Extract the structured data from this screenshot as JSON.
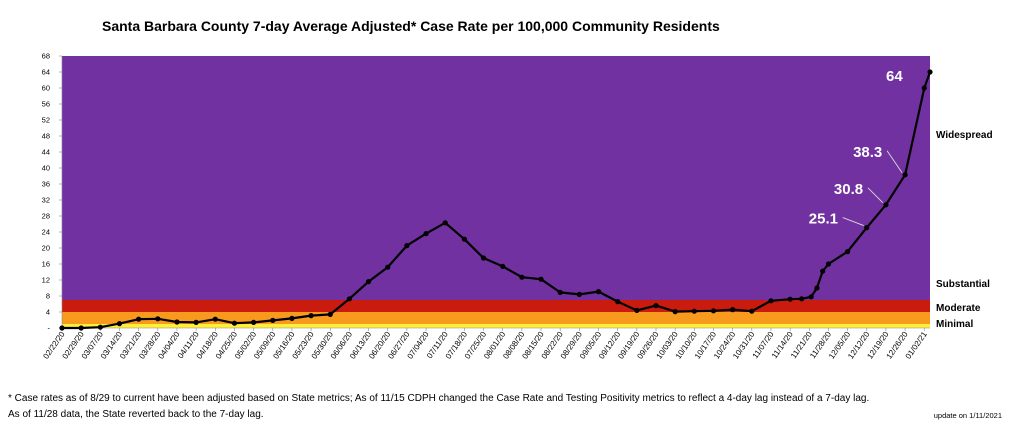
{
  "chart_data": {
    "type": "line",
    "title": "Santa Barbara County 7-day Average Adjusted* Case Rate per 100,000 Community Residents",
    "xlabel": "",
    "ylabel": "",
    "ylim": [
      0,
      68
    ],
    "yticks": [
      0,
      4,
      8,
      12,
      16,
      20,
      24,
      28,
      32,
      36,
      40,
      44,
      48,
      52,
      56,
      60,
      64,
      68
    ],
    "ytick_labels": [
      "-",
      "4",
      "8",
      "12",
      "16",
      "20",
      "24",
      "28",
      "32",
      "36",
      "40",
      "44",
      "48",
      "52",
      "56",
      "60",
      "64",
      "68"
    ],
    "x_tick_labels": [
      "02/22/20",
      "02/29/20",
      "03/07/20",
      "03/14/20",
      "03/21/20",
      "03/28/20",
      "04/04/20",
      "04/11/20",
      "04/18/20",
      "04/25/20",
      "05/02/20",
      "05/09/20",
      "05/16/20",
      "05/23/20",
      "05/30/20",
      "06/06/20",
      "06/13/20",
      "06/20/20",
      "06/27/20",
      "07/04/20",
      "07/11/20",
      "07/18/20",
      "07/25/20",
      "08/01/20",
      "08/08/20",
      "08/15/20",
      "08/22/20",
      "08/29/20",
      "09/05/20",
      "09/12/20",
      "09/19/20",
      "09/26/20",
      "10/03/20",
      "10/10/20",
      "10/17/20",
      "10/24/20",
      "10/31/20",
      "11/07/20",
      "11/14/20",
      "11/21/20",
      "11/28/20",
      "12/05/20",
      "12/12/20",
      "12/19/20",
      "12/26/20",
      "01/02/21"
    ],
    "series": [
      {
        "name": "7-day average adjusted case rate",
        "x": [
          0,
          1,
          2,
          3,
          4,
          5,
          6,
          7,
          8,
          9,
          10,
          11,
          12,
          13,
          14,
          15,
          16,
          17,
          18,
          19,
          20,
          21,
          22,
          23,
          24,
          25,
          26,
          27,
          28,
          29,
          30,
          31,
          32,
          33,
          34,
          35,
          36,
          37,
          38,
          38.6,
          39.1,
          39.4,
          39.7,
          40,
          41,
          42,
          43,
          44,
          45,
          45.3
        ],
        "values": [
          0,
          0,
          0.2,
          1.1,
          2.2,
          2.3,
          1.5,
          1.4,
          2.2,
          1.2,
          1.4,
          1.9,
          2.4,
          3.1,
          3.4,
          7.3,
          11.6,
          15.2,
          20.6,
          23.6,
          26.3,
          22.2,
          17.5,
          15.4,
          12.7,
          12.2,
          8.9,
          8.4,
          9.1,
          6.6,
          4.4,
          5.6,
          4.1,
          4.2,
          4.3,
          4.6,
          4.2,
          6.8,
          7.2,
          7.3,
          7.8,
          10.0,
          14.2,
          16.0,
          19.1,
          25.1,
          30.8,
          38.3,
          60.0,
          64.0
        ]
      }
    ],
    "tier_bands": [
      {
        "name": "Minimal",
        "from": 0,
        "to": 1,
        "color": "#ffef3a"
      },
      {
        "name": "Moderate",
        "from": 1,
        "to": 4,
        "color": "#f79a1d"
      },
      {
        "name": "Substantial",
        "from": 4,
        "to": 7,
        "color": "#c91c0e"
      },
      {
        "name": "Widespread",
        "from": 7,
        "to": 68,
        "color": "#7131a0"
      }
    ],
    "tier_labels": {
      "widespread": "Widespread",
      "substantial": "Substantial",
      "moderate": "Moderate",
      "minimal": "Minimal"
    },
    "annotations": [
      {
        "text": "25.1",
        "x": 42,
        "y": 25.1
      },
      {
        "text": "30.8",
        "x": 43,
        "y": 30.8
      },
      {
        "text": "38.3",
        "x": 44,
        "y": 38.3
      },
      {
        "text": "64",
        "x": 45.3,
        "y": 64
      }
    ]
  },
  "footnotes": {
    "line1": "* Case rates as of 8/29 to current have been adjusted based on State metrics; As of 11/15 CDPH changed the Case Rate and Testing Positivity metrics to reflect a 4-day lag instead of a 7-day lag.",
    "line2": "As of 11/28 data, the State reverted back to the 7-day lag.",
    "update": "update on 1/11/2021"
  },
  "colors": {
    "line": "#000000",
    "annotation_text": "#ffffff",
    "annotation_leader": "#d9d9d9"
  }
}
